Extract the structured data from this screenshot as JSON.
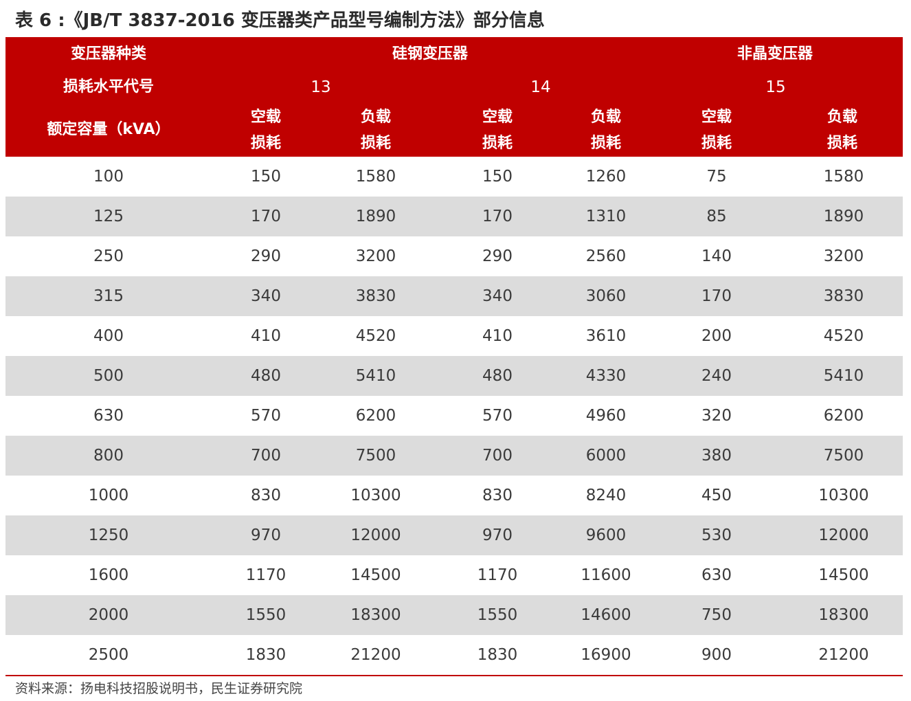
{
  "title": "表 6 :《JB/T 3837-2016  变压器类产品型号编制方法》部分信息",
  "header": {
    "row1_label": "变压器种类",
    "group_silicon": "硅钢变压器",
    "group_amorphous": "非晶变压器",
    "row2_label": "损耗水平代号",
    "level_13": "13",
    "level_14": "14",
    "level_15": "15",
    "row3_label": "额定容量（kVA）",
    "cols": [
      {
        "line1": "空载",
        "line2": "损耗"
      },
      {
        "line1": "负载",
        "line2": "损耗"
      },
      {
        "line1": "空载",
        "line2": "损耗"
      },
      {
        "line1": "负载",
        "line2": "损耗"
      },
      {
        "line1": "空载",
        "line2": "损耗"
      },
      {
        "line1": "负载",
        "line2": "损耗"
      }
    ]
  },
  "rows": [
    [
      "100",
      "150",
      "1580",
      "150",
      "1260",
      "75",
      "1580"
    ],
    [
      "125",
      "170",
      "1890",
      "170",
      "1310",
      "85",
      "1890"
    ],
    [
      "250",
      "290",
      "3200",
      "290",
      "2560",
      "140",
      "3200"
    ],
    [
      "315",
      "340",
      "3830",
      "340",
      "3060",
      "170",
      "3830"
    ],
    [
      "400",
      "410",
      "4520",
      "410",
      "3610",
      "200",
      "4520"
    ],
    [
      "500",
      "480",
      "5410",
      "480",
      "4330",
      "240",
      "5410"
    ],
    [
      "630",
      "570",
      "6200",
      "570",
      "4960",
      "320",
      "6200"
    ],
    [
      "800",
      "700",
      "7500",
      "700",
      "6000",
      "380",
      "7500"
    ],
    [
      "1000",
      "830",
      "10300",
      "830",
      "8240",
      "450",
      "10300"
    ],
    [
      "1250",
      "970",
      "12000",
      "970",
      "9600",
      "530",
      "12000"
    ],
    [
      "1600",
      "1170",
      "14500",
      "1170",
      "11600",
      "630",
      "14500"
    ],
    [
      "2000",
      "1550",
      "18300",
      "1550",
      "14600",
      "750",
      "18300"
    ],
    [
      "2500",
      "1830",
      "21200",
      "1830",
      "16900",
      "900",
      "21200"
    ]
  ],
  "source": "资料来源：扬电科技招股说明书，民生证券研究院",
  "colors": {
    "header_bg": "#c00000",
    "stripe_bg": "#dcdcdc",
    "header_text": "#ffffff"
  }
}
